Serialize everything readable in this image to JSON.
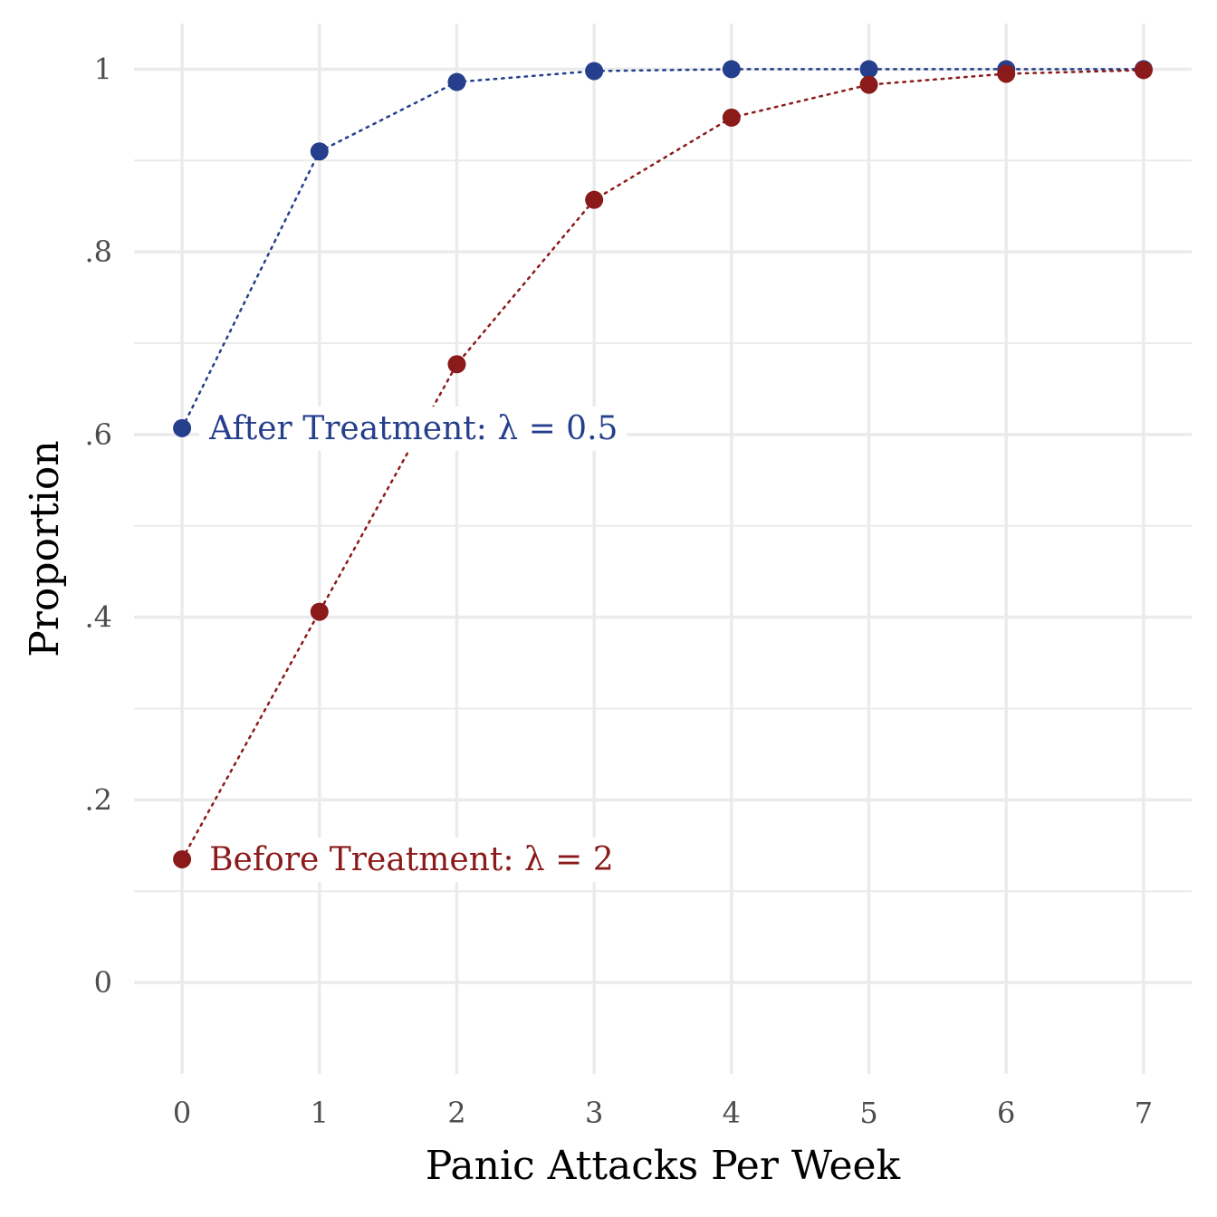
{
  "chart_data": {
    "type": "line",
    "xlabel": "Panic Attacks Per Week",
    "ylabel": "Proportion",
    "x": [
      0,
      1,
      2,
      3,
      4,
      5,
      6,
      7
    ],
    "x_tick_labels": [
      "0",
      "1",
      "2",
      "3",
      "4",
      "5",
      "6",
      "7"
    ],
    "y_ticks": [
      0,
      0.2,
      0.4,
      0.6,
      0.8,
      1.0
    ],
    "y_tick_labels": [
      "0",
      ".2",
      ".4",
      ".6",
      ".8",
      "1"
    ],
    "xlim": [
      -0.35,
      7.35
    ],
    "ylim": [
      -0.1,
      1.05
    ],
    "grid": true,
    "line_style": "dotted",
    "series": [
      {
        "label": "After Treatment: λ = 0.5",
        "color": "#253f8c",
        "values": [
          0.607,
          0.91,
          0.986,
          0.998,
          1.0,
          1.0,
          1.0,
          1.0
        ]
      },
      {
        "label": "Before Treatment: λ = 2",
        "color": "#8b1a1a",
        "values": [
          0.135,
          0.406,
          0.677,
          0.857,
          0.947,
          0.983,
          0.995,
          0.999
        ]
      }
    ]
  }
}
